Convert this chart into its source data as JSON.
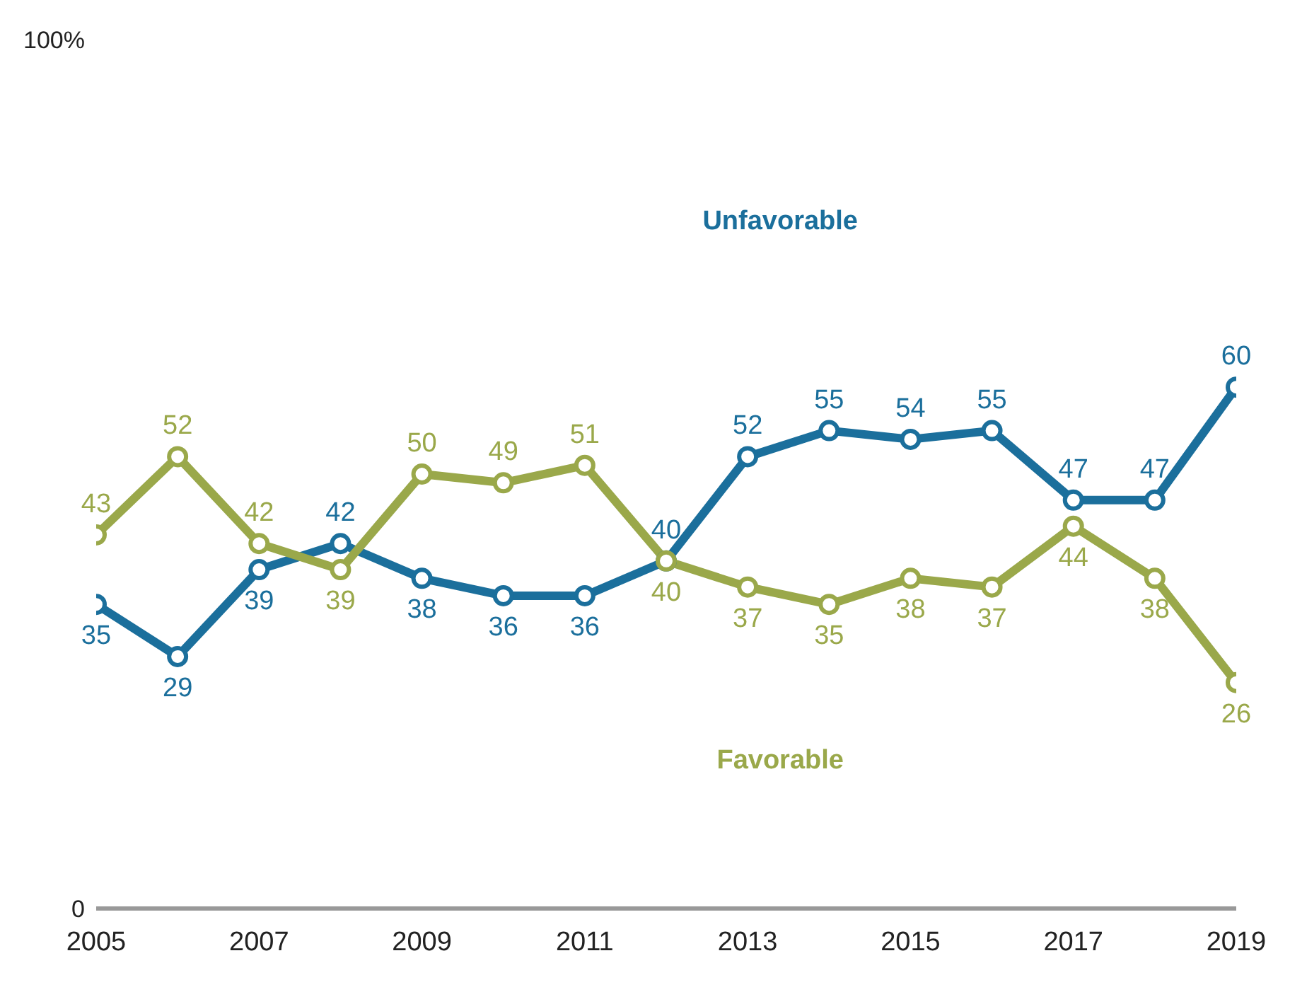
{
  "chart_data": {
    "type": "line",
    "x": [
      2005,
      2006,
      2007,
      2008,
      2009,
      2010,
      2011,
      2012,
      2013,
      2014,
      2015,
      2016,
      2017,
      2018,
      2019
    ],
    "series": [
      {
        "name": "Unfavorable",
        "color": "#1b6f9c",
        "values": [
          35,
          29,
          39,
          42,
          38,
          36,
          36,
          40,
          52,
          55,
          54,
          55,
          47,
          47,
          60
        ]
      },
      {
        "name": "Favorable",
        "color": "#9aa84a",
        "values": [
          43,
          52,
          42,
          39,
          50,
          49,
          51,
          40,
          37,
          35,
          38,
          37,
          44,
          38,
          26
        ]
      }
    ],
    "xlim": [
      2005,
      2019
    ],
    "xticks": [
      2005,
      2007,
      2009,
      2011,
      2013,
      2015,
      2017,
      2019
    ],
    "ylim": [
      0,
      100
    ],
    "yticks": [
      0,
      {
        "value": 100,
        "label": "100%"
      }
    ],
    "marker": "circle",
    "line_style": "solid",
    "data_labels": true
  }
}
